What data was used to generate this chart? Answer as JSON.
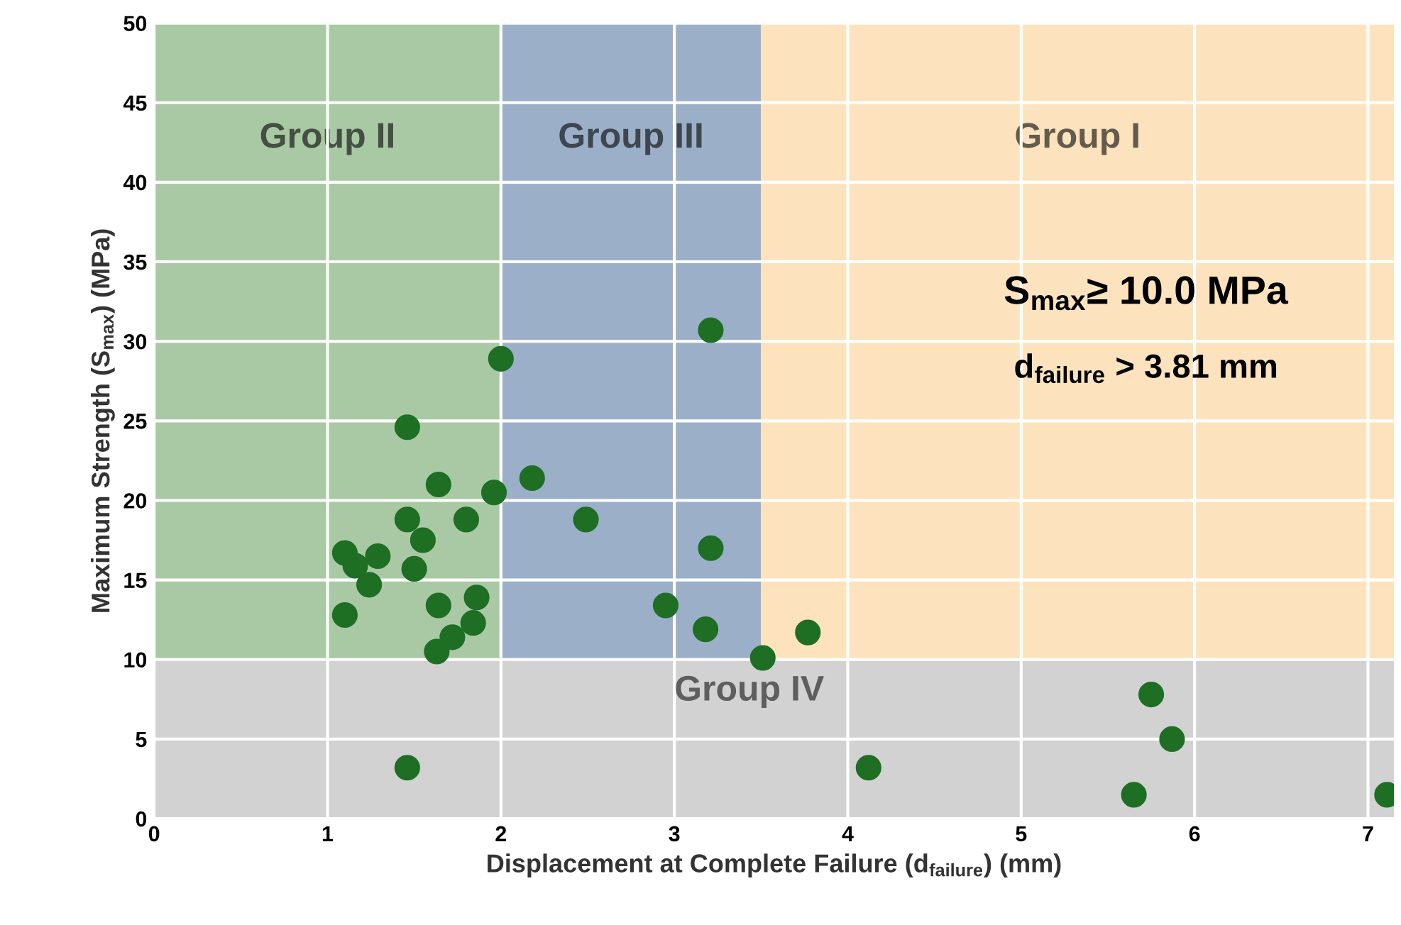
{
  "chart_data": {
    "type": "scatter",
    "xlabel": "Displacement at Complete Failure (d$_{failure}$) (mm)",
    "ylabel": "Maximum Strength (S$_{max}$) (MPa)",
    "annotations": [
      "S$_{max}$≥ 10.0 MPa",
      "d$_{failure}$ > 3.81 mm"
    ],
    "xlim": [
      0,
      7.15
    ],
    "xticks": [
      0,
      1,
      2,
      3,
      4,
      5,
      6,
      7
    ],
    "ylim": [
      0,
      50
    ],
    "yticks": [
      0,
      5,
      10,
      15,
      20,
      25,
      30,
      35,
      40,
      45,
      50
    ],
    "grid": true,
    "marker": "circle",
    "bands": [
      {
        "axis": "x",
        "from": 0,
        "to": 2,
        "label": "Group II",
        "color": "#a9c9a4"
      },
      {
        "axis": "x",
        "from": 2,
        "to": 3.5,
        "label": "Group III",
        "color": "#9bb0c8"
      },
      {
        "axis": "x",
        "from": 3.5,
        "to": 7.15,
        "label": "Group I",
        "color": "#fde3bd"
      },
      {
        "axis": "y",
        "from": 0,
        "to": 10,
        "label": "Group IV",
        "color": "#d2d2d2"
      }
    ],
    "series": [
      {
        "color": "#1e6e24",
        "x": [
          2.0,
          1.46,
          1.64,
          1.96,
          2.18,
          2.49,
          1.46,
          1.8,
          1.55,
          1.1,
          1.29,
          1.16,
          1.24,
          1.5,
          1.1,
          1.64,
          1.86,
          1.84,
          1.72,
          1.63,
          1.46,
          3.21,
          3.21,
          2.95,
          3.18,
          3.77,
          3.51,
          4.12,
          5.75,
          5.87,
          5.65,
          7.11
        ],
        "values": [
          28.9,
          24.6,
          21.0,
          20.5,
          21.4,
          18.8,
          18.8,
          18.8,
          17.5,
          16.7,
          16.5,
          15.9,
          14.7,
          15.7,
          12.8,
          13.4,
          13.9,
          12.3,
          11.4,
          10.5,
          3.2,
          30.7,
          17.0,
          13.4,
          11.9,
          11.7,
          10.1,
          3.2,
          7.8,
          5.0,
          1.5,
          1.5
        ]
      }
    ]
  }
}
